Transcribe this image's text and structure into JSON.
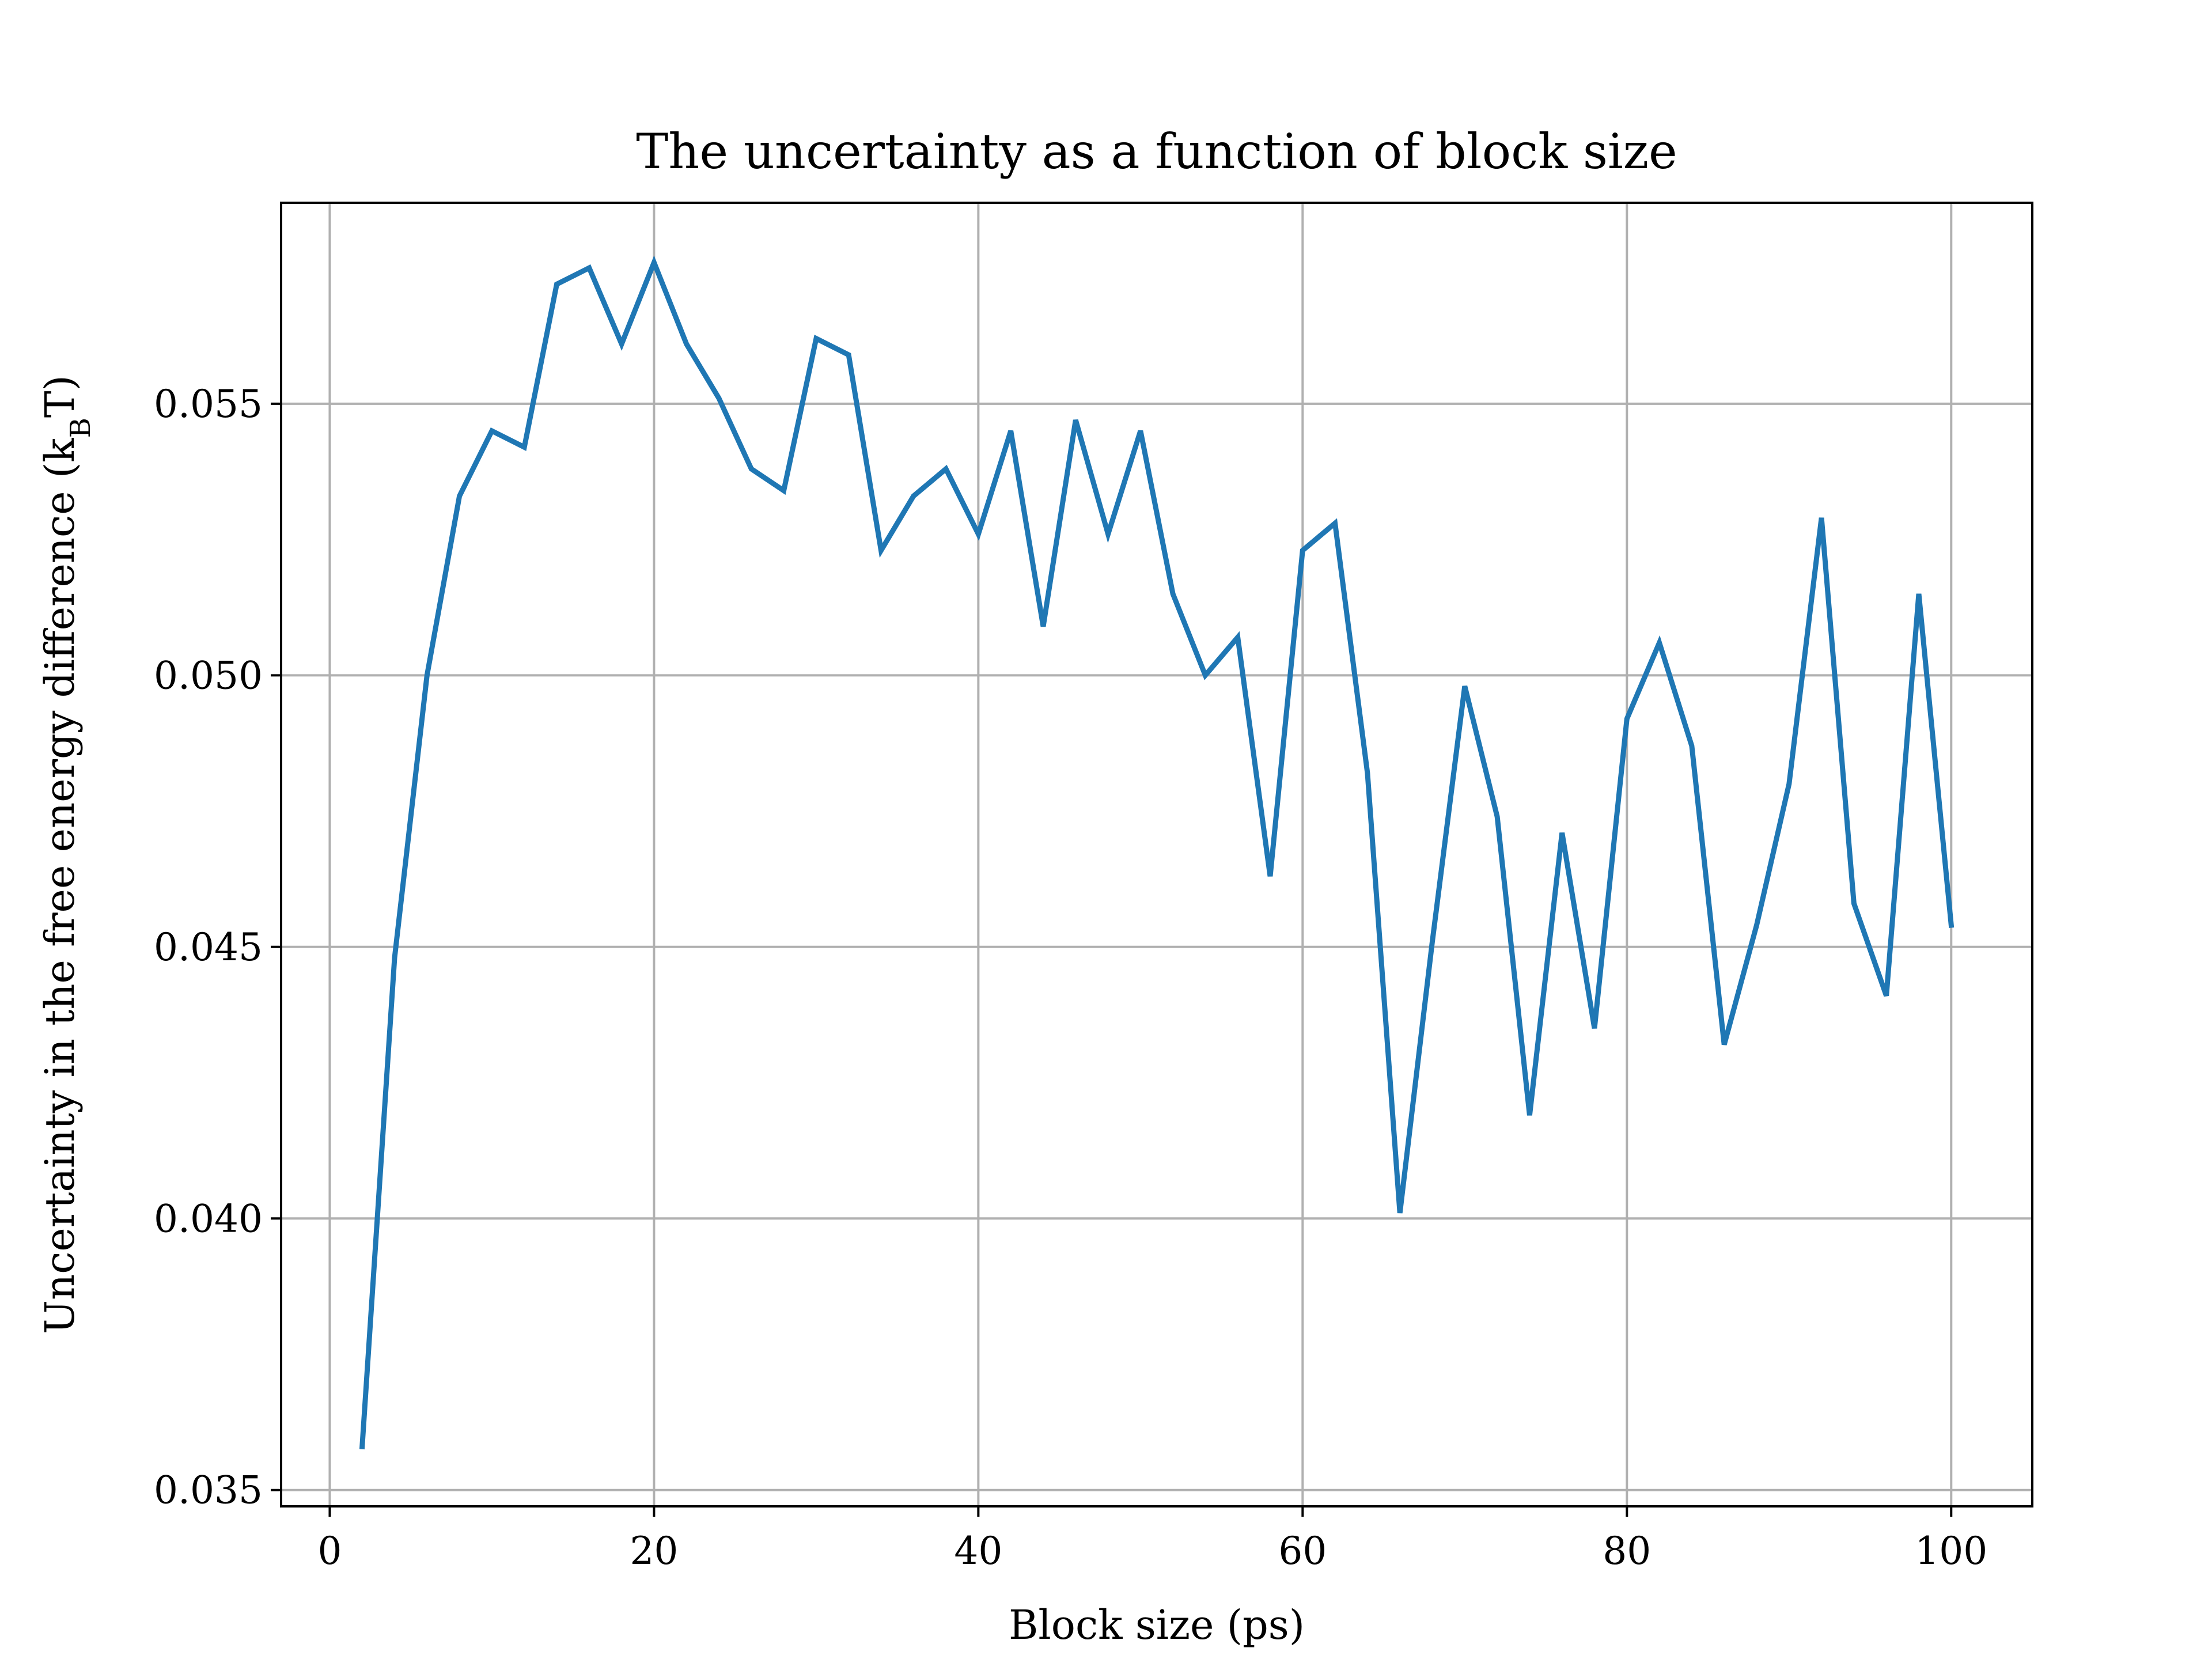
{
  "chart_data": {
    "type": "line",
    "title": "The uncertainty as a function of block size",
    "xlabel": "Block size (ps)",
    "ylabel": "Uncertainty in the free energy difference (k",
    "ylabel_sub": "B",
    "ylabel_end": "T)",
    "xlim": [
      -3,
      105
    ],
    "ylim": [
      0.0347,
      0.0587
    ],
    "xticks": [
      0,
      20,
      40,
      60,
      80,
      100
    ],
    "xtick_labels": [
      "0",
      "20",
      "40",
      "60",
      "80",
      "100"
    ],
    "yticks": [
      0.035,
      0.04,
      0.045,
      0.05,
      0.055
    ],
    "ytick_labels": [
      "0.035",
      "0.040",
      "0.045",
      "0.050",
      "0.055"
    ],
    "grid": true,
    "colors": {
      "line": "#1f77b4",
      "grid": "#b0b0b0",
      "axes": "#000000"
    },
    "series": [
      {
        "x": [
          2,
          4,
          6,
          8,
          10,
          12,
          14,
          16,
          18,
          20,
          22,
          24,
          26,
          28,
          30,
          32,
          34,
          36,
          38,
          40,
          42,
          44,
          46,
          48,
          50,
          52,
          54,
          56,
          58,
          60,
          62,
          64,
          66,
          68,
          70,
          72,
          74,
          76,
          78,
          80,
          82,
          84,
          86,
          88,
          90,
          92,
          94,
          96,
          98,
          100
        ],
        "y": [
          0.0358,
          0.0448,
          0.05,
          0.0533,
          0.0545,
          0.0542,
          0.0572,
          0.0575,
          0.0561,
          0.0576,
          0.0561,
          0.0551,
          0.0538,
          0.0534,
          0.0562,
          0.0559,
          0.0523,
          0.0533,
          0.0538,
          0.0526,
          0.0545,
          0.0509,
          0.0547,
          0.0526,
          0.0545,
          0.0515,
          0.05,
          0.0507,
          0.0463,
          0.0523,
          0.0528,
          0.0482,
          0.0401,
          0.0451,
          0.0498,
          0.0474,
          0.0419,
          0.0471,
          0.0435,
          0.0492,
          0.0506,
          0.0487,
          0.0432,
          0.0454,
          0.048,
          0.0529,
          0.0458,
          0.0441,
          0.0515,
          0.0454
        ]
      }
    ]
  }
}
